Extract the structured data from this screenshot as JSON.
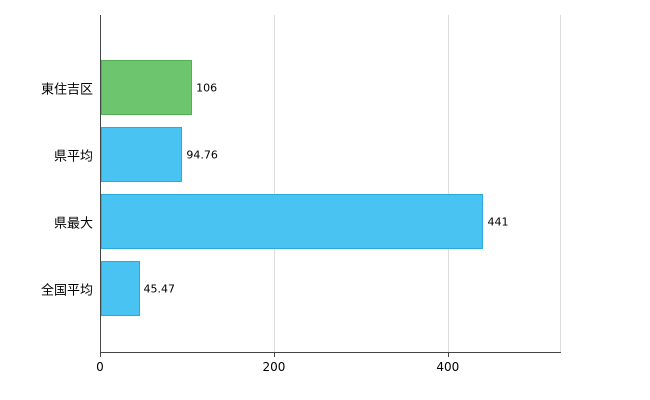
{
  "chart_data": {
    "type": "bar",
    "orientation": "horizontal",
    "title": "",
    "xlabel": "",
    "ylabel": "",
    "categories": [
      "東住吉区",
      "県平均",
      "県最大",
      "全国平均"
    ],
    "values": [
      106,
      94.76,
      441,
      45.47
    ],
    "value_labels": [
      "106",
      "94.76",
      "441",
      "45.47"
    ],
    "bar_fill_colors": [
      "#6dc66e",
      "#49c3f1",
      "#49c3f1",
      "#49c3f1"
    ],
    "bar_border_colors": [
      "#54ae55",
      "#2ea9dc",
      "#2ea9dc",
      "#2ea9dc"
    ],
    "x_ticks": [
      "0",
      "200",
      "400"
    ],
    "x_tick_values": [
      0,
      200,
      400
    ],
    "xlim": [
      0,
      529
    ],
    "grid": true,
    "legend": false
  },
  "colors": {
    "background": "#ffffff",
    "grid": "#dddddd",
    "axis": "#444444",
    "text": "#000000"
  }
}
